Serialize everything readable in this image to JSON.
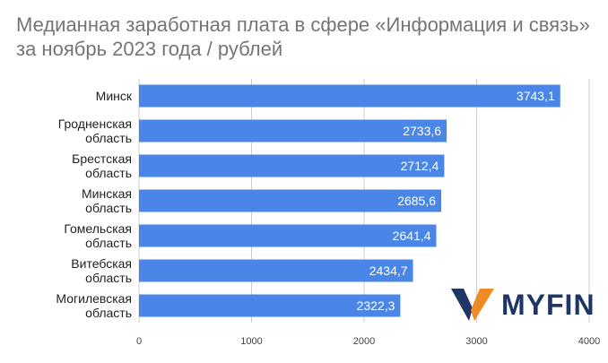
{
  "chart_data": {
    "type": "bar",
    "orientation": "horizontal",
    "title": "Медианная заработная плата в сфере «Информация и связь» за ноябрь 2023 года / рублей",
    "categories": [
      [
        "Минск"
      ],
      [
        "Гродненская",
        "область"
      ],
      [
        "Брестская",
        "область"
      ],
      [
        "Минская",
        "область"
      ],
      [
        "Гомельская",
        "область"
      ],
      [
        "Витебская",
        "область"
      ],
      [
        "Могилевская",
        "область"
      ]
    ],
    "values": [
      3743.1,
      2733.6,
      2712.4,
      2685.6,
      2641.4,
      2434.7,
      2322.3
    ],
    "value_labels": [
      "3743,1",
      "2733,6",
      "2712,4",
      "2685,6",
      "2641,4",
      "2434,7",
      "2322,3"
    ],
    "x_ticks": [
      "0",
      "1000",
      "2000",
      "3000",
      "4000"
    ],
    "xlim": [
      0,
      4000
    ],
    "grid": "vertical",
    "bar_color": "#4a86e8",
    "grid_color": "#cccccc"
  },
  "logo": {
    "text": "MYFIN",
    "icon": "myfin-logo-icon",
    "colors": [
      "#1f3566",
      "#f08a24"
    ]
  }
}
